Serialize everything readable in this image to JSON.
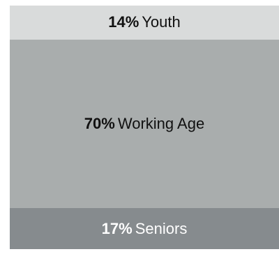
{
  "chart_data": {
    "type": "bar",
    "orientation": "stacked-vertical-single",
    "categories": [
      "Youth",
      "Working Age",
      "Seniors"
    ],
    "values": [
      14,
      70,
      17
    ],
    "value_labels": [
      "14%",
      "70%",
      "17%"
    ],
    "colors": [
      "#d9dbdb",
      "#a9adad",
      "#868b8e"
    ],
    "text_colors": [
      "#111111",
      "#111111",
      "#ffffff"
    ],
    "unit": "%"
  }
}
